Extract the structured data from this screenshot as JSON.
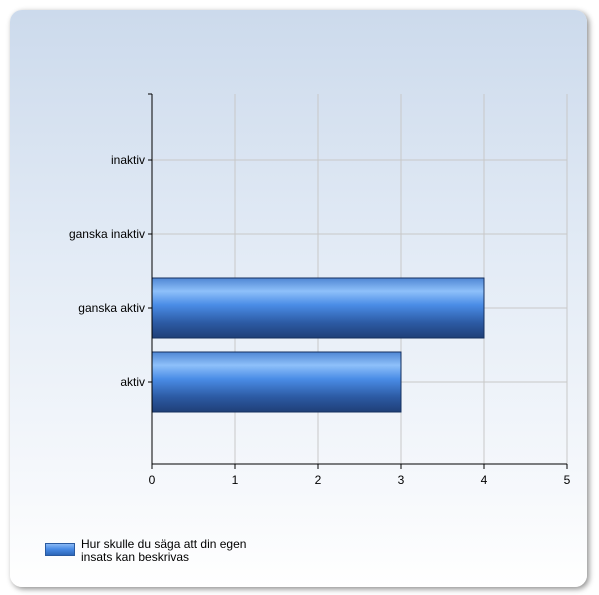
{
  "chart_data": {
    "type": "bar",
    "orientation": "horizontal",
    "categories": [
      "inaktiv",
      "ganska inaktiv",
      "ganska aktiv",
      "aktiv"
    ],
    "series": [
      {
        "name": "Hur skulle du säga att din egen insats kan beskrivas",
        "values": [
          0,
          0,
          4,
          3
        ]
      }
    ],
    "xlim": [
      0,
      5
    ],
    "xticks": [
      0,
      1,
      2,
      3,
      4,
      5
    ],
    "grid": true,
    "legend_position": "bottom-left",
    "colors": {
      "bar_light": "#8ec0fa",
      "bar_mid": "#4a8ce6",
      "bar_dark": "#1f3f78",
      "grid": "#c8c8c8"
    }
  }
}
